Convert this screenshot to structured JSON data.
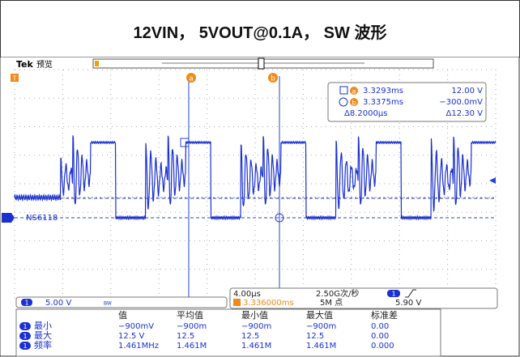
{
  "title": "12VIN， 5VOUT@0.1A， SW 波形",
  "header": {
    "brand": "Tek",
    "mode": "预览"
  },
  "markers": {
    "trigger": "T",
    "a": "a",
    "b": "b"
  },
  "channel_label": "NS6118",
  "cursor_readout": {
    "rows": [
      [
        "3.3293ms",
        "12.00 V"
      ],
      [
        "3.3375ms",
        "−300.0mV"
      ],
      [
        "Δ8.2000µs",
        "Δ12.30 V"
      ]
    ]
  },
  "channel_settings": {
    "channel": "1",
    "scale": "5.00 V",
    "bw": "BW"
  },
  "timebase": {
    "scale": "4.00µs",
    "sample_rate": "2.50G次/秒",
    "position": "3.336000ms",
    "record": "5M 点",
    "trigger_channel": "1",
    "trigger_level": "5.90 V"
  },
  "measurements": {
    "headers": [
      "值",
      "平均值",
      "最小值",
      "最大值",
      "标准差"
    ],
    "rows": [
      {
        "channel": "1",
        "name": "最小",
        "cells": [
          "−900mV",
          "−900m",
          "−900m",
          "−900m",
          "0.00"
        ]
      },
      {
        "channel": "1",
        "name": "最大",
        "cells": [
          "12.5 V",
          "12.5",
          "12.5",
          "12.5",
          "0.00"
        ]
      },
      {
        "channel": "1",
        "name": "频率",
        "cells": [
          "1.461MHz",
          "1.461M",
          "1.461M",
          "1.461M",
          "0.000"
        ]
      }
    ]
  }
}
